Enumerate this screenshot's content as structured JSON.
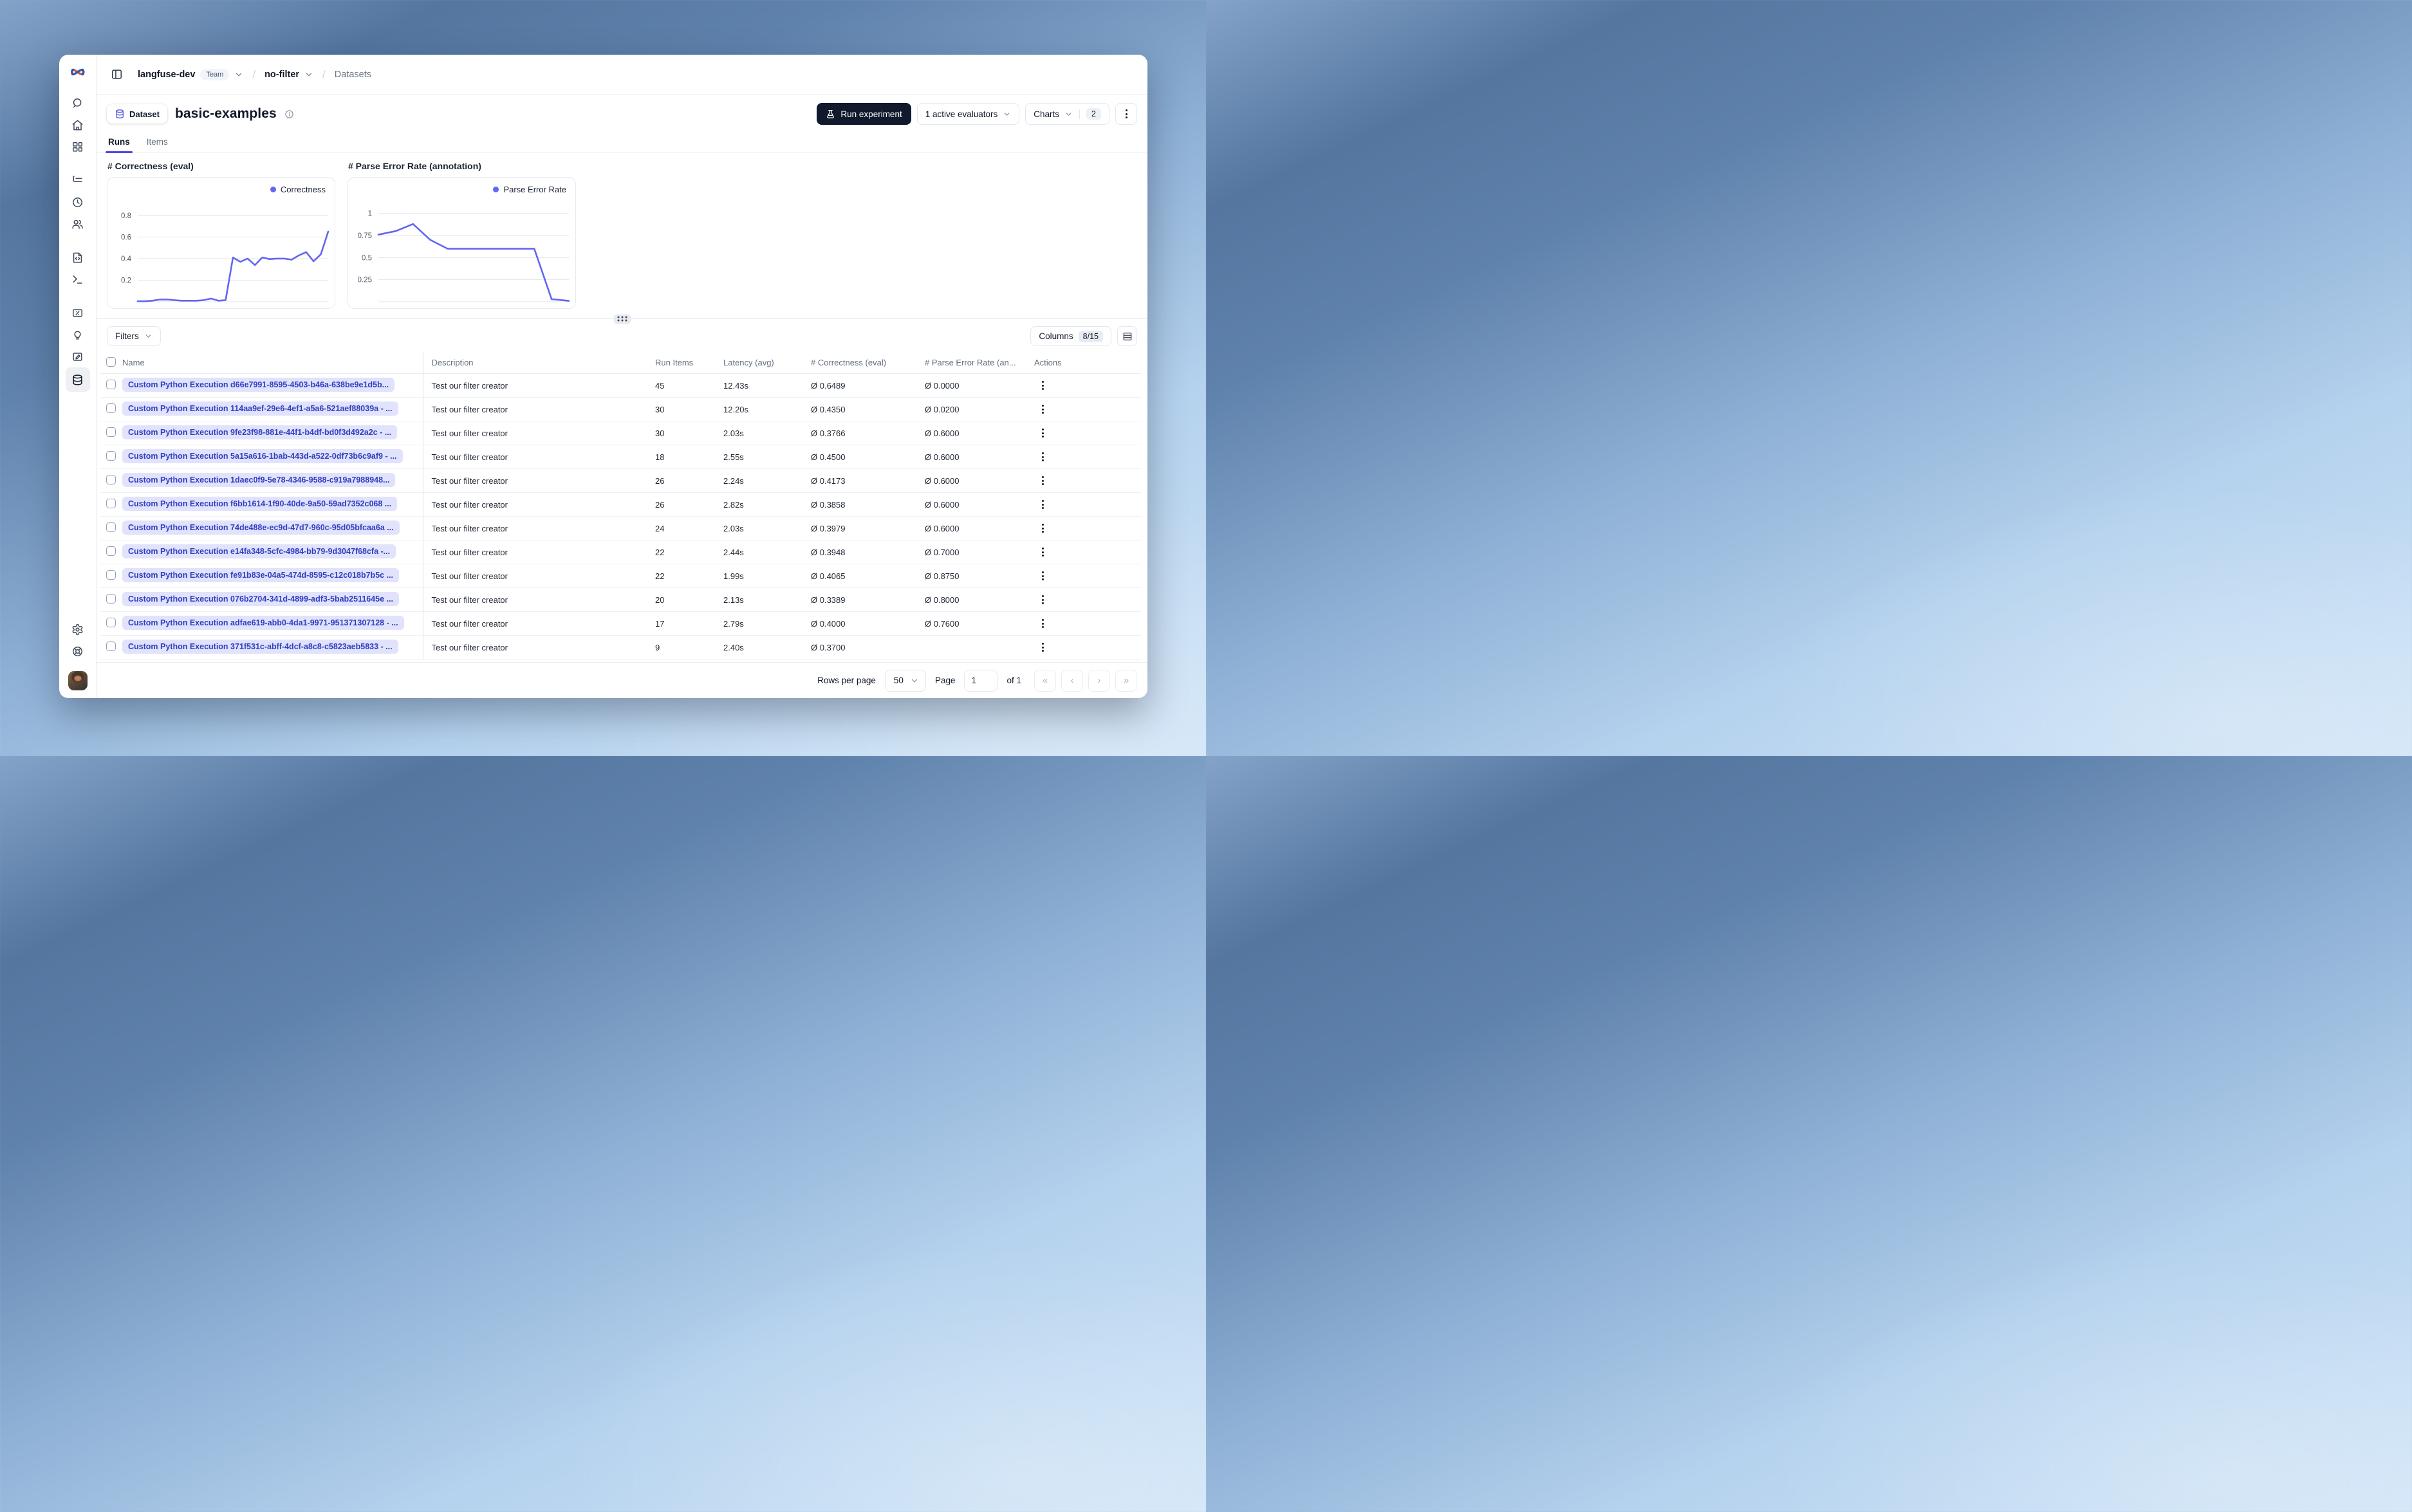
{
  "breadcrumb": {
    "org": "langfuse-dev",
    "org_badge": "Team",
    "project": "no-filter",
    "page": "Datasets"
  },
  "header": {
    "entity_badge": "Dataset",
    "title": "basic-examples",
    "run_experiment": "Run experiment",
    "evaluators_button": "1 active evaluators",
    "charts_button": "Charts",
    "charts_count": "2"
  },
  "tabs": [
    {
      "label": "Runs",
      "active": true
    },
    {
      "label": "Items",
      "active": false
    }
  ],
  "chart_data": [
    {
      "type": "line",
      "title": "# Correctness (eval)",
      "series": "Correctness",
      "color": "#6366f1",
      "values": [
        0.005,
        0.005,
        0.01,
        0.02,
        0.02,
        0.015,
        0.01,
        0.01,
        0.01,
        0.015,
        0.03,
        0.01,
        0.015,
        0.41,
        0.37,
        0.4,
        0.34,
        0.41,
        0.395,
        0.4,
        0.4,
        0.39,
        0.43,
        0.46,
        0.375,
        0.44,
        0.65
      ],
      "yticks": [
        0.2,
        0.4,
        0.6,
        0.8
      ],
      "ylim": [
        0,
        0.9
      ],
      "xlabel": "",
      "ylabel": "",
      "legend_position": "top-right",
      "grid": true
    },
    {
      "type": "line",
      "title": "# Parse Error Rate (annotation)",
      "series": "Parse Error Rate",
      "color": "#6366f1",
      "values": [
        0.76,
        0.8,
        0.88,
        0.7,
        0.6,
        0.6,
        0.6,
        0.6,
        0.6,
        0.6,
        0.03,
        0.01
      ],
      "yticks": [
        0.25,
        0.5,
        0.75,
        1
      ],
      "ylim": [
        0,
        1.1
      ],
      "xlabel": "",
      "ylabel": "",
      "legend_position": "top-right",
      "grid": true
    }
  ],
  "controls": {
    "filters_label": "Filters",
    "columns_label": "Columns",
    "columns_count": "8/15"
  },
  "table": {
    "columns": [
      "Name",
      "Description",
      "Run Items",
      "Latency (avg)",
      "# Correctness (eval)",
      "# Parse Error Rate (an...",
      "Actions"
    ],
    "rows": [
      {
        "name": "Custom Python Execution d66e7991-8595-4503-b46a-638be9e1d5b...",
        "description": "Test our filter creator",
        "run_items": "45",
        "latency": "12.43s",
        "correctness": "Ø 0.6489",
        "parse_error": "Ø 0.0000"
      },
      {
        "name": "Custom Python Execution 114aa9ef-29e6-4ef1-a5a6-521aef88039a - ...",
        "description": "Test our filter creator",
        "run_items": "30",
        "latency": "12.20s",
        "correctness": "Ø 0.4350",
        "parse_error": "Ø 0.0200"
      },
      {
        "name": "Custom Python Execution 9fe23f98-881e-44f1-b4df-bd0f3d492a2c - ...",
        "description": "Test our filter creator",
        "run_items": "30",
        "latency": "2.03s",
        "correctness": "Ø 0.3766",
        "parse_error": "Ø 0.6000"
      },
      {
        "name": "Custom Python Execution 5a15a616-1bab-443d-a522-0df73b6c9af9 - ...",
        "description": "Test our filter creator",
        "run_items": "18",
        "latency": "2.55s",
        "correctness": "Ø 0.4500",
        "parse_error": "Ø 0.6000"
      },
      {
        "name": "Custom Python Execution 1daec0f9-5e78-4346-9588-c919a7988948...",
        "description": "Test our filter creator",
        "run_items": "26",
        "latency": "2.24s",
        "correctness": "Ø 0.4173",
        "parse_error": "Ø 0.6000"
      },
      {
        "name": "Custom Python Execution f6bb1614-1f90-40de-9a50-59ad7352c068 ...",
        "description": "Test our filter creator",
        "run_items": "26",
        "latency": "2.82s",
        "correctness": "Ø 0.3858",
        "parse_error": "Ø 0.6000"
      },
      {
        "name": "Custom Python Execution 74de488e-ec9d-47d7-960c-95d05bfcaa6a ...",
        "description": "Test our filter creator",
        "run_items": "24",
        "latency": "2.03s",
        "correctness": "Ø 0.3979",
        "parse_error": "Ø 0.6000"
      },
      {
        "name": "Custom Python Execution e14fa348-5cfc-4984-bb79-9d3047f68cfa -...",
        "description": "Test our filter creator",
        "run_items": "22",
        "latency": "2.44s",
        "correctness": "Ø 0.3948",
        "parse_error": "Ø 0.7000"
      },
      {
        "name": "Custom Python Execution fe91b83e-04a5-474d-8595-c12c018b7b5c ...",
        "description": "Test our filter creator",
        "run_items": "22",
        "latency": "1.99s",
        "correctness": "Ø 0.4065",
        "parse_error": "Ø 0.8750"
      },
      {
        "name": "Custom Python Execution 076b2704-341d-4899-adf3-5bab2511645e ...",
        "description": "Test our filter creator",
        "run_items": "20",
        "latency": "2.13s",
        "correctness": "Ø 0.3389",
        "parse_error": "Ø 0.8000"
      },
      {
        "name": "Custom Python Execution adfae619-abb0-4da1-9971-951371307128 - ...",
        "description": "Test our filter creator",
        "run_items": "17",
        "latency": "2.79s",
        "correctness": "Ø 0.4000",
        "parse_error": "Ø 0.7600"
      },
      {
        "name": "Custom Python Execution 371f531c-abff-4dcf-a8c8-c5823aeb5833 - ...",
        "description": "Test our filter creator",
        "run_items": "9",
        "latency": "2.40s",
        "correctness": "Ø 0.3700",
        "parse_error": ""
      }
    ]
  },
  "pagination": {
    "rows_per_page_label": "Rows per page",
    "rows_per_page_value": "50",
    "page_label": "Page",
    "page_value": "1",
    "of_label": "of 1",
    "first_icon": "«",
    "prev_icon": "‹",
    "next_icon": "›",
    "last_icon": "»"
  }
}
